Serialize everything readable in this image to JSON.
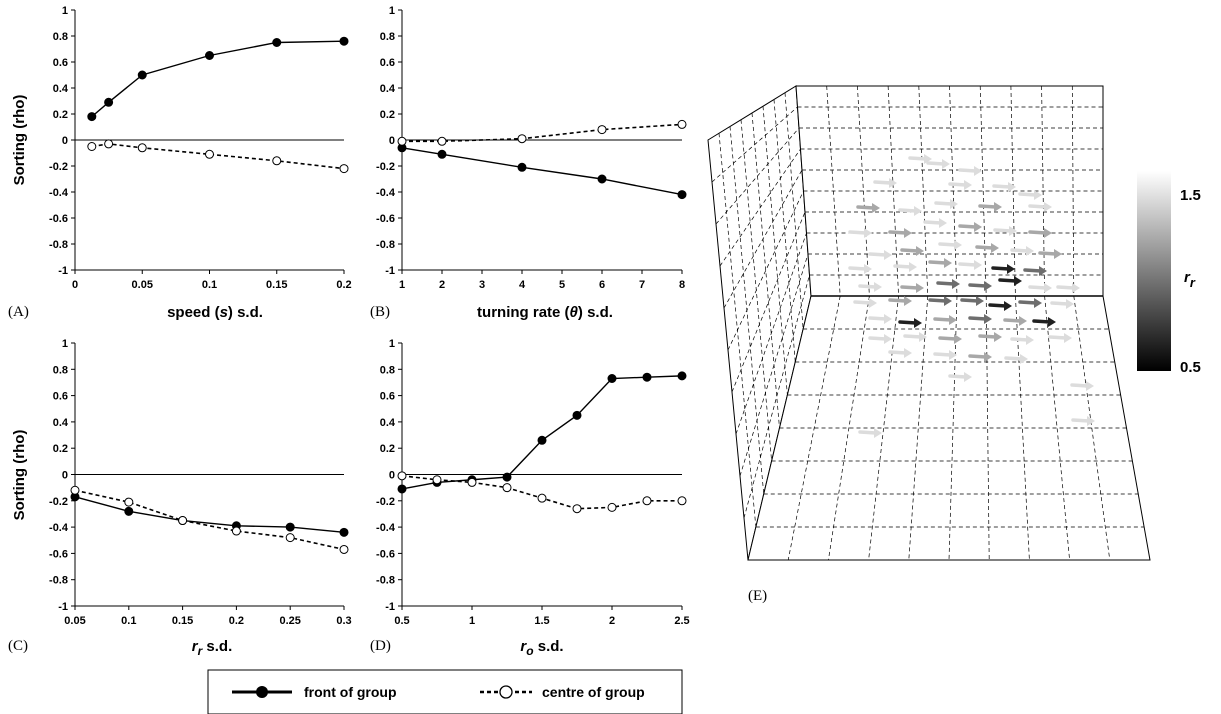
{
  "figure_title": "",
  "shared_ylabel": "Sorting (rho)",
  "y_ticks": [
    "1",
    "0.8",
    "0.6",
    "0.4",
    "0.2",
    "0",
    "-0.2",
    "-0.4",
    "-0.6",
    "-0.8",
    "-1"
  ],
  "panels": [
    {
      "letter": "(A)",
      "xlabel": "speed (s) s.d.",
      "x_ticks": [
        "0",
        "0.05",
        "0.1",
        "0.15",
        "0.2"
      ]
    },
    {
      "letter": "(B)",
      "xlabel": "turning rate (θ) s.d.",
      "x_ticks": [
        "1",
        "2",
        "3",
        "4",
        "5",
        "6",
        "7",
        "8"
      ]
    },
    {
      "letter": "(C)",
      "xlabel": "r_r s.d.",
      "x_ticks": [
        "0.05",
        "0.1",
        "0.15",
        "0.2",
        "0.25",
        "0.3"
      ]
    },
    {
      "letter": "(D)",
      "xlabel": "r_o s.d.",
      "x_ticks": [
        "0.5",
        "1",
        "1.5",
        "2",
        "2.5"
      ]
    }
  ],
  "panel_e": {
    "letter": "(E)",
    "colorbar_label": "r_r",
    "colorbar_max": "1.5",
    "colorbar_min": "0.5"
  },
  "legend": {
    "front": "front of group",
    "centre": "centre of group"
  },
  "chart_data": [
    {
      "type": "line",
      "panel": "A",
      "xlabel": "speed (s) s.d.",
      "ylabel": "Sorting (rho)",
      "xlim": [
        0,
        0.2
      ],
      "ylim": [
        -1,
        1
      ],
      "series": [
        {
          "name": "front of group",
          "x": [
            0.0125,
            0.025,
            0.05,
            0.1,
            0.15,
            0.2
          ],
          "values": [
            0.18,
            0.29,
            0.5,
            0.65,
            0.75,
            0.76
          ],
          "marker": "filled",
          "line": "solid"
        },
        {
          "name": "centre of group",
          "x": [
            0.0125,
            0.025,
            0.05,
            0.1,
            0.15,
            0.2
          ],
          "values": [
            -0.05,
            -0.03,
            -0.06,
            -0.11,
            -0.16,
            -0.22
          ],
          "marker": "open",
          "line": "dashed"
        }
      ]
    },
    {
      "type": "line",
      "panel": "B",
      "xlabel": "turning rate (θ) s.d.",
      "xlim": [
        1,
        8
      ],
      "ylim": [
        -1,
        1
      ],
      "series": [
        {
          "name": "front of group",
          "x": [
            1,
            2,
            4,
            6,
            8
          ],
          "values": [
            -0.06,
            -0.11,
            -0.21,
            -0.3,
            -0.42
          ],
          "marker": "filled",
          "line": "solid"
        },
        {
          "name": "centre of group",
          "x": [
            1,
            2,
            4,
            6,
            8
          ],
          "values": [
            -0.01,
            -0.01,
            0.01,
            0.08,
            0.12
          ],
          "marker": "open",
          "line": "dashed"
        }
      ]
    },
    {
      "type": "line",
      "panel": "C",
      "xlabel": "r_r s.d.",
      "ylabel": "Sorting (rho)",
      "xlim": [
        0.05,
        0.3
      ],
      "ylim": [
        -1,
        1
      ],
      "series": [
        {
          "name": "front of group",
          "x": [
            0.05,
            0.1,
            0.15,
            0.2,
            0.25,
            0.3
          ],
          "values": [
            -0.17,
            -0.28,
            -0.35,
            -0.39,
            -0.4,
            -0.44
          ],
          "marker": "filled",
          "line": "solid"
        },
        {
          "name": "centre of group",
          "x": [
            0.05,
            0.1,
            0.15,
            0.2,
            0.25,
            0.3
          ],
          "values": [
            -0.12,
            -0.21,
            -0.35,
            -0.43,
            -0.48,
            -0.57
          ],
          "marker": "open",
          "line": "dashed"
        }
      ]
    },
    {
      "type": "line",
      "panel": "D",
      "xlabel": "r_o s.d.",
      "xlim": [
        0.5,
        2.5
      ],
      "ylim": [
        -1,
        1
      ],
      "series": [
        {
          "name": "front of group",
          "x": [
            0.5,
            0.75,
            1,
            1.25,
            1.5,
            1.75,
            2,
            2.25,
            2.5
          ],
          "values": [
            -0.11,
            -0.06,
            -0.04,
            -0.02,
            0.26,
            0.45,
            0.73,
            0.74,
            0.75
          ],
          "marker": "filled",
          "line": "solid"
        },
        {
          "name": "centre of group",
          "x": [
            0.5,
            0.75,
            1,
            1.25,
            1.5,
            1.75,
            2,
            2.25,
            2.5
          ],
          "values": [
            -0.01,
            -0.04,
            -0.06,
            -0.1,
            -0.18,
            -0.26,
            -0.25,
            -0.2,
            -0.2
          ],
          "marker": "open",
          "line": "dashed"
        }
      ]
    }
  ]
}
